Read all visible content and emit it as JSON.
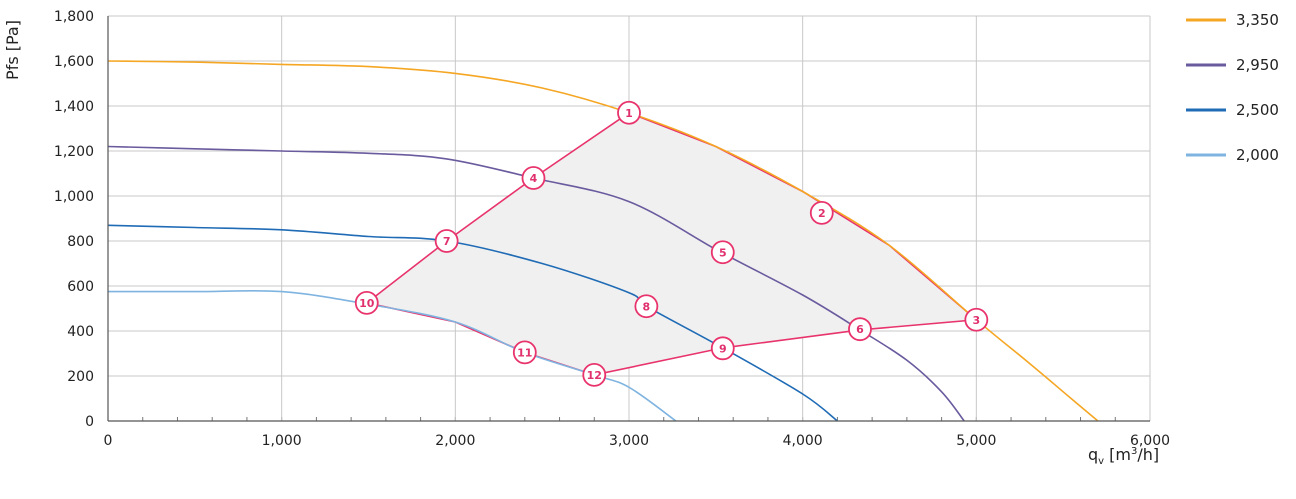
{
  "chart_data": {
    "type": "line",
    "xlabel": {
      "base": "q",
      "sub": "v",
      "unit_pre": " [m",
      "sup": "3",
      "unit_post": "/h]"
    },
    "ylabel": "Pfs [Pa]",
    "xlim": [
      0,
      6000
    ],
    "ylim": [
      0,
      1800
    ],
    "xticks": [
      0,
      1000,
      2000,
      3000,
      4000,
      5000,
      6000
    ],
    "xtick_labels": [
      "0",
      "1,000",
      "2,000",
      "3,000",
      "4,000",
      "5,000",
      "6,000"
    ],
    "yticks": [
      0,
      200,
      400,
      600,
      800,
      1000,
      1200,
      1400,
      1600,
      1800
    ],
    "ytick_labels": [
      "0",
      "200",
      "400",
      "600",
      "800",
      "1,000",
      "1,200",
      "1,400",
      "1,600",
      "1,800"
    ],
    "grid": true,
    "legend_position": "right",
    "series": [
      {
        "name": "3,350",
        "color": "#f5a623",
        "points": [
          [
            0,
            1600
          ],
          [
            500,
            1595
          ],
          [
            1000,
            1585
          ],
          [
            1500,
            1575
          ],
          [
            2000,
            1545
          ],
          [
            2500,
            1480
          ],
          [
            3000,
            1370
          ],
          [
            3500,
            1220
          ],
          [
            4000,
            1020
          ],
          [
            4500,
            780
          ],
          [
            5000,
            450
          ],
          [
            5300,
            260
          ],
          [
            5500,
            130
          ],
          [
            5700,
            0
          ]
        ]
      },
      {
        "name": "2,950",
        "color": "#6a5a9e",
        "points": [
          [
            0,
            1220
          ],
          [
            500,
            1210
          ],
          [
            1000,
            1200
          ],
          [
            1500,
            1190
          ],
          [
            1950,
            1165
          ],
          [
            2450,
            1080
          ],
          [
            3000,
            975
          ],
          [
            3530,
            750
          ],
          [
            4000,
            560
          ],
          [
            4330,
            405
          ],
          [
            4600,
            270
          ],
          [
            4800,
            130
          ],
          [
            4930,
            0
          ]
        ]
      },
      {
        "name": "2,500",
        "color": "#1f6bb5",
        "points": [
          [
            0,
            870
          ],
          [
            500,
            860
          ],
          [
            1000,
            850
          ],
          [
            1500,
            820
          ],
          [
            1950,
            800
          ],
          [
            2500,
            700
          ],
          [
            3000,
            570
          ],
          [
            3100,
            510
          ],
          [
            3540,
            325
          ],
          [
            4000,
            120
          ],
          [
            4200,
            0
          ]
        ]
      },
      {
        "name": "2,000",
        "color": "#7fb4e0",
        "points": [
          [
            0,
            575
          ],
          [
            500,
            575
          ],
          [
            1000,
            575
          ],
          [
            1490,
            520
          ],
          [
            2000,
            440
          ],
          [
            2400,
            305
          ],
          [
            2800,
            205
          ],
          [
            3000,
            150
          ],
          [
            3270,
            0
          ]
        ]
      }
    ],
    "operating_boundary": {
      "color": "#e8336c",
      "fill": "#f0f0f0",
      "polygon": [
        [
          1490,
          525
        ],
        [
          1950,
          800
        ],
        [
          2450,
          1080
        ],
        [
          3000,
          1370
        ],
        [
          3500,
          1220
        ],
        [
          4000,
          1020
        ],
        [
          4500,
          780
        ],
        [
          5000,
          450
        ],
        [
          4330,
          405
        ],
        [
          3540,
          325
        ],
        [
          2800,
          205
        ],
        [
          2400,
          305
        ],
        [
          2000,
          440
        ]
      ]
    },
    "markers": [
      {
        "label": "1",
        "x": 3000,
        "y": 1370
      },
      {
        "label": "2",
        "x": 4110,
        "y": 925
      },
      {
        "label": "3",
        "x": 5000,
        "y": 450
      },
      {
        "label": "4",
        "x": 2450,
        "y": 1080
      },
      {
        "label": "5",
        "x": 3540,
        "y": 750
      },
      {
        "label": "6",
        "x": 4330,
        "y": 408
      },
      {
        "label": "7",
        "x": 1950,
        "y": 800
      },
      {
        "label": "8",
        "x": 3100,
        "y": 510
      },
      {
        "label": "9",
        "x": 3540,
        "y": 323
      },
      {
        "label": "10",
        "x": 1490,
        "y": 525
      },
      {
        "label": "11",
        "x": 2400,
        "y": 305
      },
      {
        "label": "12",
        "x": 2800,
        "y": 205
      }
    ]
  }
}
